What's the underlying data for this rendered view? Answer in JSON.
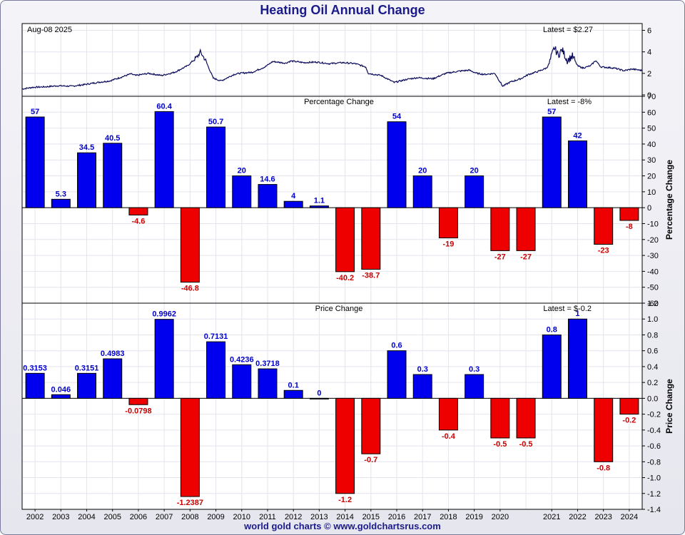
{
  "title": "Heating Oil Annual Change",
  "footer": "world gold charts © www.goldchartsrus.com",
  "colors": {
    "positive": "#0000ee",
    "negative": "#ee0000",
    "line": "#0a0a5a",
    "pos_label": "#0000cc",
    "neg_label": "#cc0000"
  },
  "chart_data": [
    {
      "type": "line",
      "title": "",
      "date_label": "Aug-08  2025",
      "latest_label": "Latest = $2.27",
      "ylim": [
        0,
        6.5
      ],
      "yticks": [
        0,
        2,
        4,
        6
      ],
      "x_range": [
        2001.6,
        2025.6
      ],
      "keypoints": [
        [
          2001.6,
          0.55
        ],
        [
          2002.0,
          0.7
        ],
        [
          2002.5,
          0.75
        ],
        [
          2003.0,
          0.85
        ],
        [
          2003.5,
          0.8
        ],
        [
          2004.0,
          0.95
        ],
        [
          2004.5,
          1.15
        ],
        [
          2005.0,
          1.3
        ],
        [
          2005.5,
          1.7
        ],
        [
          2005.8,
          1.95
        ],
        [
          2006.0,
          1.8
        ],
        [
          2006.5,
          2.0
        ],
        [
          2007.0,
          1.8
        ],
        [
          2007.5,
          2.1
        ],
        [
          2008.0,
          2.7
        ],
        [
          2008.4,
          3.6
        ],
        [
          2008.5,
          4.0
        ],
        [
          2008.7,
          3.2
        ],
        [
          2009.0,
          1.55
        ],
        [
          2009.3,
          1.3
        ],
        [
          2009.8,
          1.9
        ],
        [
          2010.0,
          2.0
        ],
        [
          2010.5,
          2.1
        ],
        [
          2011.0,
          2.6
        ],
        [
          2011.3,
          3.1
        ],
        [
          2011.8,
          2.95
        ],
        [
          2012.0,
          3.15
        ],
        [
          2012.5,
          3.0
        ],
        [
          2013.0,
          3.05
        ],
        [
          2013.5,
          2.9
        ],
        [
          2014.0,
          3.0
        ],
        [
          2014.5,
          2.9
        ],
        [
          2014.9,
          2.6
        ],
        [
          2015.0,
          2.0
        ],
        [
          2015.5,
          1.8
        ],
        [
          2016.0,
          1.15
        ],
        [
          2016.5,
          1.45
        ],
        [
          2016.9,
          1.6
        ],
        [
          2017.5,
          1.5
        ],
        [
          2018.0,
          2.0
        ],
        [
          2018.5,
          2.2
        ],
        [
          2018.9,
          2.3
        ],
        [
          2019.2,
          2.0
        ],
        [
          2019.5,
          1.9
        ],
        [
          2019.9,
          2.0
        ],
        [
          2020.0,
          1.6
        ],
        [
          2020.2,
          0.8
        ],
        [
          2020.5,
          1.2
        ],
        [
          2020.9,
          1.5
        ],
        [
          2021.2,
          1.9
        ],
        [
          2021.6,
          2.2
        ],
        [
          2021.9,
          2.5
        ],
        [
          2022.0,
          2.9
        ],
        [
          2022.2,
          4.4
        ],
        [
          2022.35,
          3.7
        ],
        [
          2022.5,
          4.2
        ],
        [
          2022.7,
          3.2
        ],
        [
          2022.9,
          3.6
        ],
        [
          2023.1,
          2.7
        ],
        [
          2023.3,
          2.5
        ],
        [
          2023.6,
          2.7
        ],
        [
          2023.8,
          3.2
        ],
        [
          2024.0,
          2.6
        ],
        [
          2024.5,
          2.5
        ],
        [
          2024.9,
          2.25
        ],
        [
          2025.2,
          2.4
        ],
        [
          2025.6,
          2.27
        ]
      ]
    },
    {
      "type": "bar",
      "title": "Percentage Change",
      "latest_label": "Latest = -8%",
      "ylabel": "Percentage Change",
      "ylim": [
        -60,
        70
      ],
      "yticks": [
        -60,
        -50,
        -40,
        -30,
        -20,
        -10,
        0,
        10,
        20,
        30,
        40,
        50,
        60,
        70
      ],
      "categories": [
        "2002",
        "2003",
        "2004",
        "2005",
        "2006",
        "2007",
        "2008",
        "2009",
        "2010",
        "2011",
        "2012",
        "2013",
        "2014",
        "2015",
        "2016",
        "2017",
        "2018",
        "2019",
        "2020",
        "",
        "2021",
        "2022",
        "2023",
        "2024"
      ],
      "values": [
        57,
        5.3,
        34.5,
        40.5,
        -4.6,
        60.4,
        -46.8,
        50.7,
        20,
        14.6,
        4,
        1.1,
        -40.2,
        -38.7,
        54,
        20,
        -19,
        20,
        -27,
        -27,
        57,
        42,
        -23,
        -8
      ],
      "labels": [
        "57",
        "5.3",
        "34.5",
        "40.5",
        "-4.6",
        "60.4",
        "-46.8",
        "50.7",
        "20",
        "14.6",
        "4",
        "1.1",
        "-40.2",
        "-38.7",
        "54",
        "20",
        "-19",
        "20",
        "-27",
        "-27",
        "57",
        "42",
        "-23",
        "-8"
      ]
    },
    {
      "type": "bar",
      "title": "Price Change",
      "latest_label": "Latest = $-0.2",
      "ylabel": "Price Change",
      "ylim": [
        -1.4,
        1.2
      ],
      "yticks": [
        -1.4,
        -1.2,
        -1.0,
        -0.8,
        -0.6,
        -0.4,
        -0.2,
        0.0,
        0.2,
        0.4,
        0.6,
        0.8,
        1.0,
        1.2
      ],
      "ytick_labels": [
        "-1.4",
        "-1.2",
        "-1.0",
        "-0.8",
        "-0.6",
        "-0.4",
        "-0.2",
        "0.0",
        "0.2",
        "0.4",
        "0.6",
        "0.8",
        "1.0",
        "1.2"
      ],
      "categories": [
        "2002",
        "2003",
        "2004",
        "2005",
        "2006",
        "2007",
        "2008",
        "2009",
        "2010",
        "2011",
        "2012",
        "2013",
        "2014",
        "2015",
        "2016",
        "2017",
        "2018",
        "2019",
        "2020",
        "",
        "2021",
        "2022",
        "2023",
        "2024"
      ],
      "values": [
        0.3153,
        0.046,
        0.3151,
        0.4983,
        -0.0798,
        0.9962,
        -1.2387,
        0.7131,
        0.4236,
        0.3718,
        0.1,
        0,
        -1.2,
        -0.7,
        0.6,
        0.3,
        -0.4,
        0.3,
        -0.5,
        -0.5,
        0.8,
        1,
        -0.8,
        -0.2
      ],
      "labels": [
        "0.3153",
        "0.046",
        "0.3151",
        "0.4983",
        "-0.0798",
        "0.9962",
        "-1.2387",
        "0.7131",
        "0.4236",
        "0.3718",
        "0.1",
        "0",
        "-1.2",
        "-0.7",
        "0.6",
        "0.3",
        "-0.4",
        "0.3",
        "-0.5",
        "-0.5",
        "0.8",
        "1",
        "-0.8",
        "-0.2"
      ]
    }
  ]
}
